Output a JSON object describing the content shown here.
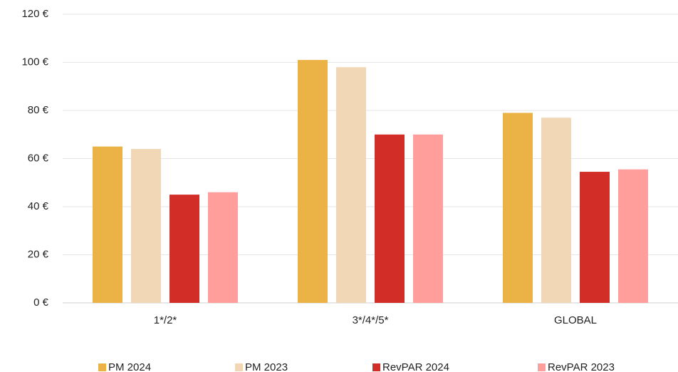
{
  "chart_data": {
    "type": "bar",
    "categories": [
      "1*/2*",
      "3*/4*/5*",
      "GLOBAL"
    ],
    "series": [
      {
        "name": "PM 2024",
        "color": "#ebb345",
        "values": [
          65,
          101,
          79
        ]
      },
      {
        "name": "PM 2023",
        "color": "#f2d7b6",
        "values": [
          64,
          98,
          77
        ]
      },
      {
        "name": "RevPAR 2024",
        "color": "#d22e27",
        "values": [
          45,
          70,
          54.5
        ]
      },
      {
        "name": "RevPAR 2023",
        "color": "#ff9e9b",
        "values": [
          46,
          70,
          55.5
        ]
      }
    ],
    "ylim": [
      0,
      120
    ],
    "yticks": [
      {
        "value": 0,
        "label": "0 €"
      },
      {
        "value": 20,
        "label": "20 €"
      },
      {
        "value": 40,
        "label": "40 €"
      },
      {
        "value": 60,
        "label": "60 €"
      },
      {
        "value": 80,
        "label": "80 €"
      },
      {
        "value": 100,
        "label": "100 €"
      },
      {
        "value": 120,
        "label": "120 €"
      }
    ],
    "grid": true,
    "legend": "bottom"
  }
}
